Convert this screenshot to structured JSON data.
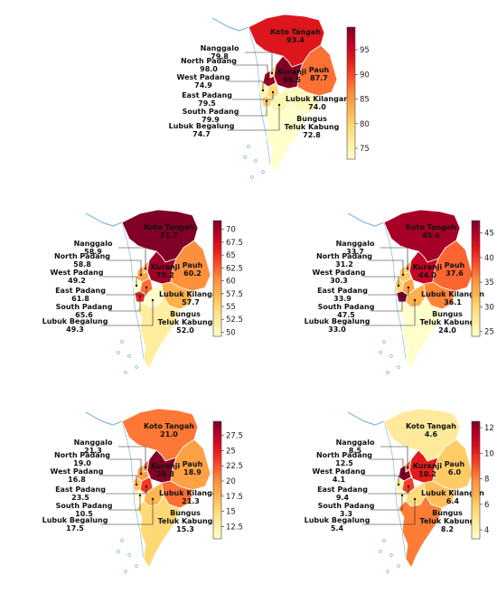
{
  "districts": [
    "Koto Tangah",
    "Kuranji",
    "Pauh",
    "Nanggalo",
    "North Padang",
    "West Padang",
    "East Padang",
    "South Padang",
    "Lubuk Kilangan",
    "Bungus Teluk Kabung",
    "Lubuk Begalung"
  ],
  "display_names": {
    "Koto Tangah": "Koto Tangah",
    "Kuranji": "Kuranji",
    "Pauh": "Pauh",
    "Nanggalo": "Nanggalo",
    "North Padang": "North Padang",
    "West Padang": "West Padang",
    "East Padang": "East Padang",
    "South Padang": "South Padang",
    "Lubuk Kilangan": "Lubuk Kilangan",
    "Bungus Teluk Kabung": "Bungus\nTeluk Kabung",
    "Lubuk Begalung": "Lubuk Begalung"
  },
  "colormap": [
    "#ffffcc",
    "#ffeda0",
    "#fed976",
    "#feb24c",
    "#fd8d3c",
    "#fc4e2a",
    "#e31a1c",
    "#bd0026",
    "#800026"
  ],
  "maps": [
    {
      "id": "map-1",
      "colorbar": {
        "min": 72.8,
        "max": 99.6,
        "ticks": [
          75,
          80,
          85,
          90,
          95
        ]
      },
      "values": {
        "Koto Tangah": 93.4,
        "Kuranji": 99.5,
        "Pauh": 87.7,
        "Nanggalo": 79.8,
        "North Padang": 98.0,
        "West Padang": 74.9,
        "East Padang": 79.5,
        "South Padang": 79.9,
        "Lubuk Kilangan": 74.0,
        "Bungus Teluk Kabung": 72.8,
        "Lubuk Begalung": 74.7
      }
    },
    {
      "id": "map-2",
      "colorbar": {
        "min": 49.2,
        "max": 71.7,
        "ticks": [
          50.0,
          52.5,
          55.0,
          57.5,
          60.0,
          62.5,
          65.0,
          67.5,
          70.0
        ]
      },
      "values": {
        "Koto Tangah": 71.7,
        "Kuranji": 70.2,
        "Pauh": 60.2,
        "Nanggalo": 58.9,
        "North Padang": 58.8,
        "West Padang": 49.2,
        "East Padang": 61.8,
        "South Padang": 65.6,
        "Lubuk Kilangan": 57.7,
        "Bungus Teluk Kabung": 52.0,
        "Lubuk Begalung": 49.3
      }
    },
    {
      "id": "map-3",
      "colorbar": {
        "min": 24.0,
        "max": 47.5,
        "ticks": [
          25,
          30,
          35,
          40,
          45
        ]
      },
      "values": {
        "Koto Tangah": 45.6,
        "Kuranji": 44.0,
        "Pauh": 37.6,
        "Nanggalo": 33.7,
        "North Padang": 31.2,
        "West Padang": 30.3,
        "East Padang": 33.9,
        "South Padang": 47.5,
        "Lubuk Kilangan": 36.1,
        "Bungus Teluk Kabung": 24.0,
        "Lubuk Begalung": 33.0
      }
    },
    {
      "id": "map-4",
      "colorbar": {
        "min": 10.5,
        "max": 29.8,
        "ticks": [
          12.5,
          15.0,
          17.5,
          20.0,
          22.5,
          25.0,
          27.5
        ]
      },
      "values": {
        "Koto Tangah": 21.0,
        "Kuranji": 29.8,
        "Pauh": 18.9,
        "Nanggalo": 21.3,
        "North Padang": 19.0,
        "West Padang": 16.8,
        "East Padang": 23.5,
        "South Padang": 10.5,
        "Lubuk Kilangan": 21.3,
        "Bungus Teluk Kabung": 15.3,
        "Lubuk Begalung": 17.5
      }
    },
    {
      "id": "map-5",
      "colorbar": {
        "min": 3.3,
        "max": 12.5,
        "ticks": [
          4,
          6,
          8,
          10,
          12
        ]
      },
      "values": {
        "Koto Tangah": 4.6,
        "Kuranji": 10.2,
        "Pauh": 6.0,
        "Nanggalo": 8.5,
        "North Padang": 12.5,
        "West Padang": 4.1,
        "East Padang": 9.4,
        "South Padang": 3.3,
        "Lubuk Kilangan": 6.4,
        "Bungus Teluk Kabung": 8.2,
        "Lubuk Begalung": 5.4
      }
    }
  ]
}
